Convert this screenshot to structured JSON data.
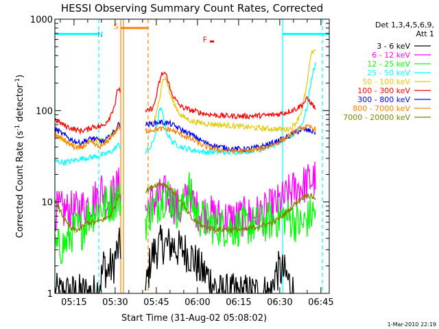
{
  "chart_data": {
    "type": "line",
    "title": "HESSI Observing Summary Count Rates, Corrected",
    "xlabel": "Start Time (31-Aug-02 05:08:02)",
    "ylabel_main": "Corrected Count Rate (s",
    "ylabel_sup1": "-1",
    "ylabel_mid": " detector",
    "ylabel_sup2": "-1",
    "ylabel_end": ")",
    "y_scale": "log",
    "ylim": [
      1,
      1000
    ],
    "xlim_minutes": [
      0,
      100
    ],
    "x_ticks": [
      {
        "label": "05:15",
        "t": 6.97
      },
      {
        "label": "05:30",
        "t": 21.97
      },
      {
        "label": "05:45",
        "t": 36.97
      },
      {
        "label": "06:00",
        "t": 51.97
      },
      {
        "label": "06:15",
        "t": 66.97
      },
      {
        "label": "06:30",
        "t": 81.97
      },
      {
        "label": "06:45",
        "t": 96.97
      }
    ],
    "y_ticks": [
      {
        "label": "1",
        "v": 1
      },
      {
        "label": "10",
        "v": 10
      },
      {
        "label": "100",
        "v": 100
      },
      {
        "label": "1000",
        "v": 1000
      }
    ],
    "legend": {
      "position": "right",
      "header1": "Det 1,3,4,5,6,9,",
      "header2": "Att 1"
    },
    "series": [
      {
        "name": "3 - 6 keV",
        "color": "#000000",
        "points": [
          [
            0,
            1
          ],
          [
            15,
            1
          ],
          [
            17,
            1.5
          ],
          [
            18,
            2.2
          ],
          [
            19,
            1.6
          ],
          [
            20,
            2
          ],
          [
            21,
            1.8
          ],
          [
            22,
            2.5
          ],
          [
            23,
            3
          ],
          [
            25,
            3.6
          ],
          [
            33,
            1
          ],
          [
            35,
            2.5
          ],
          [
            37,
            3
          ],
          [
            39,
            3.5
          ],
          [
            41,
            3.3
          ],
          [
            43,
            3.4
          ],
          [
            45,
            3
          ],
          [
            47,
            3
          ],
          [
            50,
            2.5
          ],
          [
            53,
            1.8
          ],
          [
            56,
            1.5
          ],
          [
            60,
            1
          ],
          [
            79,
            1
          ],
          [
            80,
            1.6
          ],
          [
            82,
            1.8
          ],
          [
            84,
            1.6
          ],
          [
            86,
            1.2
          ],
          [
            87,
            1
          ]
        ]
      },
      {
        "name": "6 - 12 keV",
        "color": "#ff00ff",
        "points": [
          [
            0,
            8
          ],
          [
            4,
            8
          ],
          [
            8,
            8
          ],
          [
            12,
            9.5
          ],
          [
            15,
            11
          ],
          [
            17,
            14
          ],
          [
            19,
            10
          ],
          [
            21,
            12
          ],
          [
            23,
            15
          ],
          [
            33,
            8
          ],
          [
            35,
            10
          ],
          [
            38,
            11
          ],
          [
            40,
            12
          ],
          [
            42,
            11
          ],
          [
            44,
            9
          ],
          [
            46,
            8
          ],
          [
            48,
            11
          ],
          [
            49,
            15
          ],
          [
            50,
            10
          ],
          [
            52,
            8
          ],
          [
            58,
            7
          ],
          [
            64,
            6.5
          ],
          [
            70,
            7
          ],
          [
            76,
            7.5
          ],
          [
            80,
            9
          ],
          [
            84,
            11
          ],
          [
            86,
            13
          ],
          [
            90,
            15
          ],
          [
            93,
            17
          ],
          [
            95,
            18
          ]
        ]
      },
      {
        "name": "12 - 25 keV",
        "color": "#00ff00",
        "points": [
          [
            0,
            3
          ],
          [
            4,
            3.5
          ],
          [
            7,
            5
          ],
          [
            10,
            5
          ],
          [
            12,
            7
          ],
          [
            15,
            8
          ],
          [
            18,
            9
          ],
          [
            21,
            10
          ],
          [
            23,
            11
          ],
          [
            33,
            6
          ],
          [
            35,
            8
          ],
          [
            37,
            9
          ],
          [
            39,
            11
          ],
          [
            41,
            12
          ],
          [
            43,
            10
          ],
          [
            45,
            8
          ],
          [
            47,
            9
          ],
          [
            48,
            12
          ],
          [
            49,
            14
          ],
          [
            50,
            10
          ],
          [
            52,
            7
          ],
          [
            58,
            5.5
          ],
          [
            64,
            5.2
          ],
          [
            70,
            5.5
          ],
          [
            76,
            5.8
          ],
          [
            80,
            6.5
          ],
          [
            84,
            7
          ],
          [
            88,
            6
          ],
          [
            90,
            5.5
          ],
          [
            93,
            7
          ],
          [
            95,
            8
          ]
        ]
      },
      {
        "name": "25 - 50 keV",
        "color": "#00ffff",
        "points": [
          [
            0,
            28
          ],
          [
            3,
            27
          ],
          [
            6,
            28
          ],
          [
            10,
            30
          ],
          [
            14,
            31
          ],
          [
            18,
            33
          ],
          [
            21,
            36
          ],
          [
            23,
            42
          ],
          [
            33,
            35
          ],
          [
            35,
            40
          ],
          [
            36,
            48
          ],
          [
            37,
            62
          ],
          [
            38,
            95
          ],
          [
            38.5,
            105
          ],
          [
            39.5,
            90
          ],
          [
            40,
            70
          ],
          [
            41,
            55
          ],
          [
            43,
            45
          ],
          [
            46,
            40
          ],
          [
            50,
            37
          ],
          [
            55,
            35
          ],
          [
            60,
            35
          ],
          [
            65,
            35
          ],
          [
            70,
            36
          ],
          [
            75,
            38
          ],
          [
            80,
            42
          ],
          [
            84,
            48
          ],
          [
            86,
            52
          ],
          [
            88,
            60
          ],
          [
            90,
            70
          ],
          [
            92,
            110
          ],
          [
            93,
            180
          ],
          [
            94,
            260
          ],
          [
            95,
            320
          ]
        ]
      },
      {
        "name": "50 - 100 keV",
        "color": "#e8c800",
        "points": [
          [
            0,
            55
          ],
          [
            3,
            48
          ],
          [
            6,
            42
          ],
          [
            8,
            40
          ],
          [
            10,
            43
          ],
          [
            12,
            45
          ],
          [
            14,
            48
          ],
          [
            16,
            47
          ],
          [
            18,
            46
          ],
          [
            20,
            52
          ],
          [
            22,
            60
          ],
          [
            23,
            68
          ],
          [
            33,
            72
          ],
          [
            36,
            75
          ],
          [
            37,
            90
          ],
          [
            38,
            130
          ],
          [
            39,
            200
          ],
          [
            40,
            230
          ],
          [
            41,
            200
          ],
          [
            42,
            150
          ],
          [
            44,
            110
          ],
          [
            46,
            88
          ],
          [
            50,
            76
          ],
          [
            55,
            72
          ],
          [
            60,
            70
          ],
          [
            65,
            68
          ],
          [
            70,
            66
          ],
          [
            75,
            64
          ],
          [
            80,
            63
          ],
          [
            84,
            62
          ],
          [
            86,
            64
          ],
          [
            88,
            75
          ],
          [
            90,
            100
          ],
          [
            92,
            200
          ],
          [
            93,
            350
          ],
          [
            94,
            450
          ],
          [
            95,
            470
          ]
        ]
      },
      {
        "name": "100 - 300 keV",
        "color": "#ff0000",
        "points": [
          [
            0,
            80
          ],
          [
            3,
            70
          ],
          [
            6,
            64
          ],
          [
            9,
            60
          ],
          [
            12,
            62
          ],
          [
            14,
            68
          ],
          [
            16,
            66
          ],
          [
            18,
            70
          ],
          [
            20,
            85
          ],
          [
            22,
            120
          ],
          [
            23,
            175
          ],
          [
            33,
            95
          ],
          [
            36,
            110
          ],
          [
            37,
            145
          ],
          [
            38,
            200
          ],
          [
            39,
            250
          ],
          [
            40,
            260
          ],
          [
            41,
            230
          ],
          [
            42,
            170
          ],
          [
            44,
            130
          ],
          [
            46,
            110
          ],
          [
            50,
            100
          ],
          [
            55,
            92
          ],
          [
            60,
            88
          ],
          [
            65,
            87
          ],
          [
            70,
            87
          ],
          [
            75,
            88
          ],
          [
            80,
            90
          ],
          [
            84,
            95
          ],
          [
            86,
            100
          ],
          [
            88,
            105
          ],
          [
            90,
            115
          ],
          [
            92,
            135
          ],
          [
            93,
            125
          ],
          [
            95,
            105
          ]
        ]
      },
      {
        "name": "300 - 800 keV",
        "color": "#0000ff",
        "points": [
          [
            0,
            63
          ],
          [
            3,
            55
          ],
          [
            6,
            48
          ],
          [
            9,
            44
          ],
          [
            12,
            48
          ],
          [
            14,
            50
          ],
          [
            16,
            47
          ],
          [
            18,
            46
          ],
          [
            20,
            52
          ],
          [
            22,
            60
          ],
          [
            23,
            70
          ],
          [
            33,
            70
          ],
          [
            36,
            72
          ],
          [
            38,
            75
          ],
          [
            42,
            72
          ],
          [
            46,
            62
          ],
          [
            50,
            54
          ],
          [
            55,
            44
          ],
          [
            60,
            40
          ],
          [
            65,
            38
          ],
          [
            70,
            38
          ],
          [
            75,
            40
          ],
          [
            80,
            45
          ],
          [
            84,
            50
          ],
          [
            86,
            54
          ],
          [
            88,
            58
          ],
          [
            90,
            62
          ],
          [
            93,
            60
          ],
          [
            95,
            58
          ]
        ]
      },
      {
        "name": "800 - 7000 keV",
        "color": "#ff8000",
        "points": [
          [
            0,
            55
          ],
          [
            3,
            48
          ],
          [
            6,
            42
          ],
          [
            8,
            38
          ],
          [
            10,
            40
          ],
          [
            12,
            44
          ],
          [
            14,
            43
          ],
          [
            16,
            40
          ],
          [
            18,
            42
          ],
          [
            20,
            50
          ],
          [
            22,
            58
          ],
          [
            23,
            64
          ],
          [
            33,
            60
          ],
          [
            36,
            62
          ],
          [
            38,
            63
          ],
          [
            42,
            62
          ],
          [
            46,
            55
          ],
          [
            50,
            48
          ],
          [
            55,
            40
          ],
          [
            60,
            37
          ],
          [
            65,
            36
          ],
          [
            70,
            36
          ],
          [
            75,
            38
          ],
          [
            80,
            43
          ],
          [
            84,
            50
          ],
          [
            86,
            55
          ],
          [
            88,
            60
          ],
          [
            90,
            65
          ],
          [
            93,
            66
          ],
          [
            95,
            62
          ]
        ]
      },
      {
        "name": "7000 - 20000 keV",
        "color": "#808000",
        "points": [
          [
            0,
            10
          ],
          [
            2,
            8
          ],
          [
            4,
            6
          ],
          [
            6,
            5
          ],
          [
            9,
            5
          ],
          [
            12,
            6
          ],
          [
            15,
            6
          ],
          [
            18,
            6.5
          ],
          [
            20,
            7
          ],
          [
            22,
            9
          ],
          [
            23,
            12
          ],
          [
            33,
            13
          ],
          [
            36,
            15
          ],
          [
            38,
            16
          ],
          [
            40,
            15.5
          ],
          [
            42,
            14
          ],
          [
            44,
            12
          ],
          [
            46,
            10
          ],
          [
            48,
            8
          ],
          [
            50,
            6.5
          ],
          [
            55,
            5.2
          ],
          [
            60,
            5
          ],
          [
            65,
            5
          ],
          [
            70,
            5
          ],
          [
            75,
            5.5
          ],
          [
            80,
            6
          ],
          [
            84,
            7.5
          ],
          [
            86,
            8.5
          ],
          [
            88,
            10
          ],
          [
            90,
            11
          ],
          [
            92,
            12
          ],
          [
            95,
            11
          ]
        ]
      }
    ],
    "annotations": [
      {
        "label": "N",
        "color": "#00cccc",
        "t": 16.5,
        "v": 640
      },
      {
        "label": "S",
        "color": "#ff8000",
        "t": 22.3,
        "v": 780
      },
      {
        "label": "F",
        "color": "#ff0000",
        "t": 54.7,
        "v": 560
      }
    ],
    "state_bars": [
      {
        "name": "night",
        "color": "#00ffff",
        "t0": 0,
        "t1": 16,
        "v": 690
      },
      {
        "name": "night",
        "color": "#00ffff",
        "t0": 83,
        "t1": 100,
        "v": 690
      },
      {
        "name": "saa",
        "color": "#ff8000",
        "t0": 24,
        "t1": 34,
        "v": 800
      },
      {
        "name": "flare",
        "color": "#ff0000",
        "t0": 56.5,
        "t1": 58,
        "v": 570
      }
    ],
    "vlines": [
      {
        "t": 0,
        "color": "#00ffff",
        "style": "solid"
      },
      {
        "t": 16,
        "color": "#00ffff",
        "style": "dashed"
      },
      {
        "t": 24,
        "color": "#ff8000",
        "style": "solid"
      },
      {
        "t": 25,
        "color": "#ff8000",
        "style": "solid"
      },
      {
        "t": 34,
        "color": "#ff8000",
        "style": "dashed"
      },
      {
        "t": 83,
        "color": "#00ffff",
        "style": "solid"
      },
      {
        "t": 97.5,
        "color": "#00ffff",
        "style": "dashed"
      }
    ],
    "gap": [
      24,
      33
    ],
    "footer": "1-Mar-2010 22:19"
  }
}
